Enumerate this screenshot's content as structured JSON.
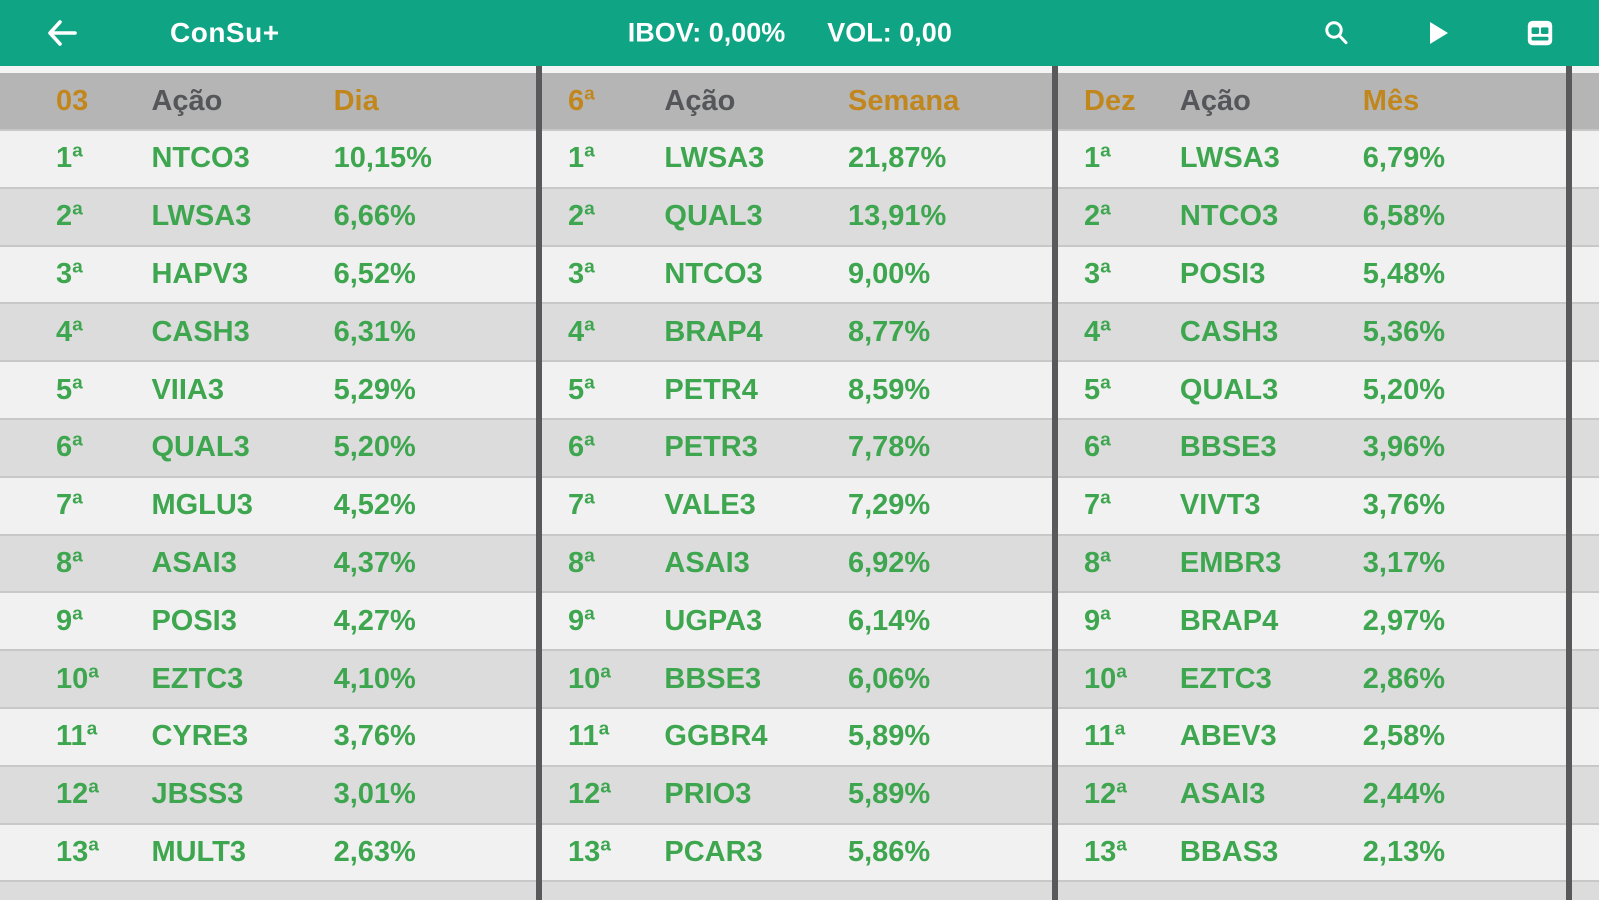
{
  "app_bar": {
    "title": "ConSu+",
    "ibov_label": "IBOV: 0,00%",
    "vol_label": "VOL: 0,00"
  },
  "colors": {
    "app_bar_teal": "#0FA484",
    "header_bg_gray": "#B5B5B6",
    "header_orange": "#C1871D",
    "header_dark_gray": "#55565A",
    "value_green": "#3EA64F",
    "row_light": "#F1F1F2",
    "row_dark": "#DCDCDD",
    "divider_dark": "#59595B"
  },
  "tables": [
    {
      "id": "day",
      "headers": [
        "03",
        "Ação",
        "Dia"
      ],
      "rows": [
        [
          "1ª",
          "NTCO3",
          "10,15%"
        ],
        [
          "2ª",
          "LWSA3",
          "6,66%"
        ],
        [
          "3ª",
          "HAPV3",
          "6,52%"
        ],
        [
          "4ª",
          "CASH3",
          "6,31%"
        ],
        [
          "5ª",
          "VIIA3",
          "5,29%"
        ],
        [
          "6ª",
          "QUAL3",
          "5,20%"
        ],
        [
          "7ª",
          "MGLU3",
          "4,52%"
        ],
        [
          "8ª",
          "ASAI3",
          "4,37%"
        ],
        [
          "9ª",
          "POSI3",
          "4,27%"
        ],
        [
          "10ª",
          "EZTC3",
          "4,10%"
        ],
        [
          "11ª",
          "CYRE3",
          "3,76%"
        ],
        [
          "12ª",
          "JBSS3",
          "3,01%"
        ],
        [
          "13ª",
          "MULT3",
          "2,63%"
        ]
      ]
    },
    {
      "id": "week",
      "headers": [
        "6ª",
        "Ação",
        "Semana"
      ],
      "rows": [
        [
          "1ª",
          "LWSA3",
          "21,87%"
        ],
        [
          "2ª",
          "QUAL3",
          "13,91%"
        ],
        [
          "3ª",
          "NTCO3",
          "9,00%"
        ],
        [
          "4ª",
          "BRAP4",
          "8,77%"
        ],
        [
          "5ª",
          "PETR4",
          "8,59%"
        ],
        [
          "6ª",
          "PETR3",
          "7,78%"
        ],
        [
          "7ª",
          "VALE3",
          "7,29%"
        ],
        [
          "8ª",
          "ASAI3",
          "6,92%"
        ],
        [
          "9ª",
          "UGPA3",
          "6,14%"
        ],
        [
          "10ª",
          "BBSE3",
          "6,06%"
        ],
        [
          "11ª",
          "GGBR4",
          "5,89%"
        ],
        [
          "12ª",
          "PRIO3",
          "5,89%"
        ],
        [
          "13ª",
          "PCAR3",
          "5,86%"
        ]
      ]
    },
    {
      "id": "month",
      "headers": [
        "Dez",
        "Ação",
        "Mês"
      ],
      "rows": [
        [
          "1ª",
          "LWSA3",
          "6,79%"
        ],
        [
          "2ª",
          "NTCO3",
          "6,58%"
        ],
        [
          "3ª",
          "POSI3",
          "5,48%"
        ],
        [
          "4ª",
          "CASH3",
          "5,36%"
        ],
        [
          "5ª",
          "QUAL3",
          "5,20%"
        ],
        [
          "6ª",
          "BBSE3",
          "3,96%"
        ],
        [
          "7ª",
          "VIVT3",
          "3,76%"
        ],
        [
          "8ª",
          "EMBR3",
          "3,17%"
        ],
        [
          "9ª",
          "BRAP4",
          "2,97%"
        ],
        [
          "10ª",
          "EZTC3",
          "2,86%"
        ],
        [
          "11ª",
          "ABEV3",
          "2,58%"
        ],
        [
          "12ª",
          "ASAI3",
          "2,44%"
        ],
        [
          "13ª",
          "BBAS3",
          "2,13%"
        ]
      ]
    }
  ]
}
